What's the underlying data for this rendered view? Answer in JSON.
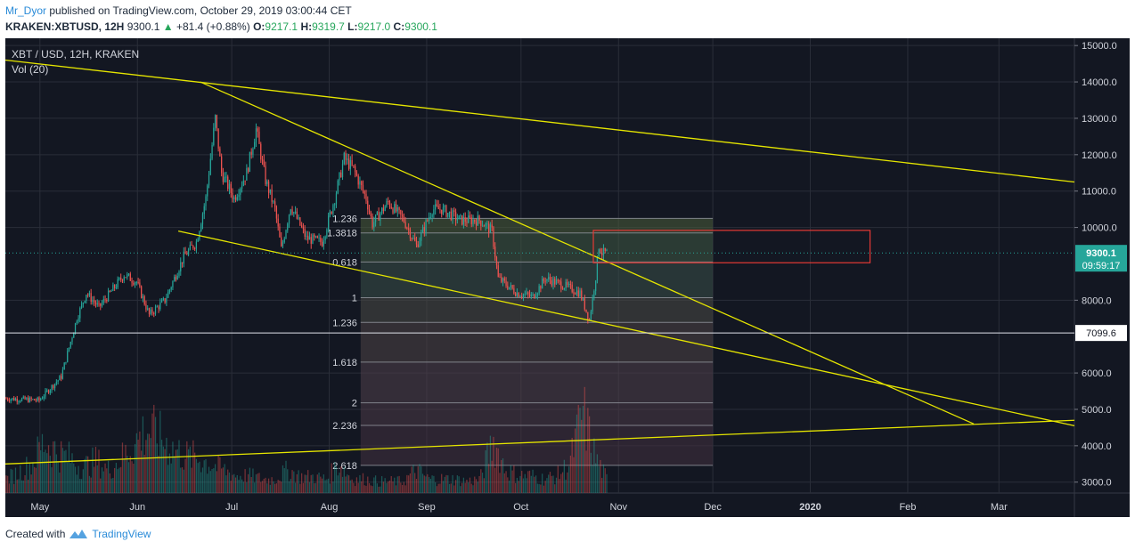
{
  "header": {
    "author": "Mr_Dyor",
    "published": "published on TradingView.com, October 29, 2019 03:00:44 CET",
    "symbol": "KRAKEN:XBTUSD, 12H",
    "last": "9300.1",
    "change": "+81.4 (+0.88%)",
    "open_label": "O:",
    "open": "9217.1",
    "high_label": "H:",
    "high": "9319.7",
    "low_label": "L:",
    "low": "9217.0",
    "close_label": "C:",
    "close": "9300.1"
  },
  "legend": {
    "title": "XBT / USD, 12H, KRAKEN",
    "volume": "Vol (20)"
  },
  "footer": {
    "created_with": "Created with",
    "brand": "TradingView"
  },
  "colors": {
    "background": "#131722",
    "grid": "#2a2e39",
    "up": "#26a69a",
    "down": "#ef5350",
    "trendline": "#e5e500",
    "fib_box": "#e5e500",
    "price_tag": "#26a69a",
    "zone": "#e53935"
  },
  "chart_data": {
    "type": "candlestick",
    "symbol": "XBTUSD",
    "interval": "12H",
    "ylim": [
      2700,
      15200
    ],
    "y_ticks": [
      "15000.0",
      "14000.0",
      "13000.0",
      "12000.0",
      "11000.0",
      "10000.0",
      "8000.0",
      "6000.0",
      "5000.0",
      "4000.0",
      "3000.0"
    ],
    "x_labels": [
      {
        "label": "May",
        "date": "2019-05-01"
      },
      {
        "label": "Jun",
        "date": "2019-06-01"
      },
      {
        "label": "Jul",
        "date": "2019-07-01"
      },
      {
        "label": "Aug",
        "date": "2019-08-01"
      },
      {
        "label": "Sep",
        "date": "2019-09-01"
      },
      {
        "label": "Oct",
        "date": "2019-10-01"
      },
      {
        "label": "Nov",
        "date": "2019-11-01"
      },
      {
        "label": "Dec",
        "date": "2019-12-01"
      },
      {
        "label": "2020",
        "date": "2020-01-01"
      },
      {
        "label": "Feb",
        "date": "2020-02-01"
      },
      {
        "label": "Mar",
        "date": "2020-03-01"
      }
    ],
    "x_range": [
      "2019-04-20",
      "2020-03-25"
    ],
    "price_path": [
      [
        "2019-04-20",
        5300
      ],
      [
        "2019-05-01",
        5250
      ],
      [
        "2019-05-08",
        5900
      ],
      [
        "2019-05-13",
        7500
      ],
      [
        "2019-05-16",
        8200
      ],
      [
        "2019-05-20",
        7800
      ],
      [
        "2019-05-28",
        8700
      ],
      [
        "2019-06-01",
        8500
      ],
      [
        "2019-06-05",
        7600
      ],
      [
        "2019-06-10",
        8000
      ],
      [
        "2019-06-16",
        9200
      ],
      [
        "2019-06-20",
        9600
      ],
      [
        "2019-06-23",
        10800
      ],
      [
        "2019-06-26",
        13000
      ],
      [
        "2019-06-28",
        11500
      ],
      [
        "2019-07-02",
        10800
      ],
      [
        "2019-07-06",
        11500
      ],
      [
        "2019-07-09",
        12700
      ],
      [
        "2019-07-12",
        11300
      ],
      [
        "2019-07-15",
        10500
      ],
      [
        "2019-07-17",
        9400
      ],
      [
        "2019-07-20",
        10600
      ],
      [
        "2019-07-25",
        9700
      ],
      [
        "2019-07-30",
        9600
      ],
      [
        "2019-08-03",
        10800
      ],
      [
        "2019-08-06",
        11900
      ],
      [
        "2019-08-09",
        11600
      ],
      [
        "2019-08-13",
        10800
      ],
      [
        "2019-08-15",
        10100
      ],
      [
        "2019-08-20",
        10700
      ],
      [
        "2019-08-25",
        10200
      ],
      [
        "2019-08-29",
        9500
      ],
      [
        "2019-09-03",
        10500
      ],
      [
        "2019-09-06",
        10500
      ],
      [
        "2019-09-12",
        10200
      ],
      [
        "2019-09-18",
        10200
      ],
      [
        "2019-09-22",
        9900
      ],
      [
        "2019-09-24",
        8600
      ],
      [
        "2019-09-30",
        8200
      ],
      [
        "2019-10-05",
        8100
      ],
      [
        "2019-10-09",
        8600
      ],
      [
        "2019-10-15",
        8400
      ],
      [
        "2019-10-20",
        8200
      ],
      [
        "2019-10-23",
        7450
      ],
      [
        "2019-10-25",
        8650
      ],
      [
        "2019-10-26",
        9500
      ],
      [
        "2019-10-27",
        9300
      ],
      [
        "2019-10-28",
        9300.1
      ]
    ],
    "volume_range": [
      0,
      1
    ],
    "volume_path": [
      0.12,
      0.18,
      0.25,
      0.45,
      0.35,
      0.3,
      0.22,
      0.28,
      0.2,
      0.3,
      0.42,
      0.55,
      0.48,
      0.38,
      0.32,
      0.3,
      0.25,
      0.2,
      0.15,
      0.15,
      0.12,
      0.12,
      0.2,
      0.14,
      0.14,
      0.12,
      0.25,
      0.12,
      0.12,
      0.1,
      0.1,
      0.1,
      0.2,
      0.12,
      0.12,
      0.12,
      0.1,
      0.12,
      0.45,
      0.2,
      0.15,
      0.15,
      0.12,
      0.15,
      0.25,
      0.7,
      0.3,
      0.1
    ],
    "trendlines": [
      {
        "name": "upper-long-resistance",
        "from": [
          "2019-04-20",
          14600
        ],
        "to": [
          "2020-03-25",
          11250
        ]
      },
      {
        "name": "falling-wedge-top",
        "from": [
          "2019-06-21",
          14000
        ],
        "to": [
          "2020-02-22",
          4600
        ]
      },
      {
        "name": "falling-wedge-bottom",
        "from": [
          "2019-06-14",
          9900
        ],
        "to": [
          "2020-03-25",
          4550
        ]
      },
      {
        "name": "long-support",
        "from": [
          "2019-04-20",
          3500
        ],
        "to": [
          "2020-03-25",
          4700
        ]
      }
    ],
    "horizontal_lines": [
      {
        "name": "support-level",
        "value": 7099.6,
        "label": "7099.6"
      }
    ],
    "current_price": {
      "value": 9300.1,
      "label": "9300.1",
      "countdown": "09:59:17"
    },
    "fibonacci": {
      "from_date": "2019-08-11",
      "to_date": "2019-12-01",
      "levels": [
        {
          "label": "1.236",
          "value": 10250
        },
        {
          "label": "1.3818",
          "value": 9850
        },
        {
          "label": "0.618",
          "value": 9050
        },
        {
          "label": "1",
          "value": 8070
        },
        {
          "label": "1.236",
          "value": 7390
        },
        {
          "label": "1.618",
          "value": 6300
        },
        {
          "label": "2",
          "value": 5180
        },
        {
          "label": "2.236",
          "value": 4560
        },
        {
          "label": "2.618",
          "value": 3460
        }
      ]
    },
    "zone": {
      "from_date": "2019-10-24",
      "to_date": "2020-01-20",
      "top": 9920,
      "bottom": 9030
    }
  }
}
